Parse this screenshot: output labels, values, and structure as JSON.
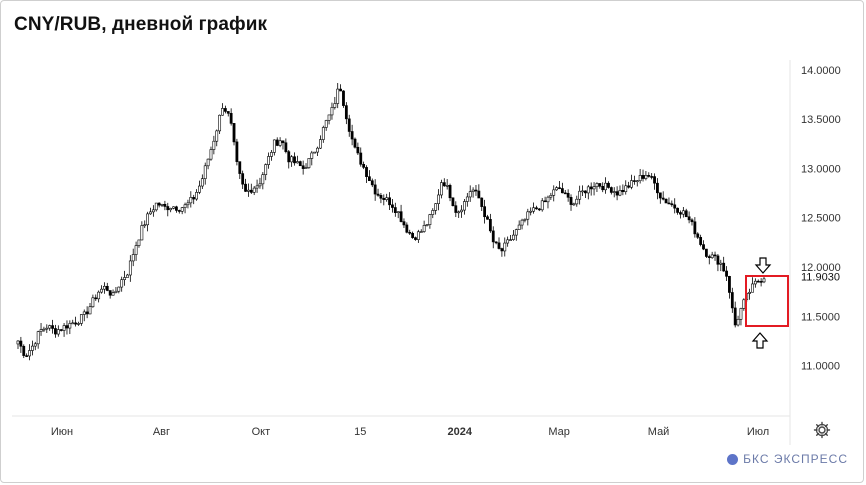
{
  "chart_data": {
    "type": "candlestick",
    "title": "CNY/RUB, дневной график",
    "y_tick_labels": [
      "14.0000",
      "13.5000",
      "13.0000",
      "12.5000",
      "12.0000",
      "11.5000",
      "11.0000"
    ],
    "y_ticks": [
      14.0,
      13.5,
      13.0,
      12.5,
      12.0,
      11.5,
      11.0
    ],
    "current_price_label": "11.9030",
    "current_price": 11.903,
    "ylim": [
      10.6,
      14.1
    ],
    "x_tick_labels": [
      "Июн",
      "Авг",
      "Окт",
      "15",
      "2024",
      "Мар",
      "Май",
      "Июл"
    ],
    "x_tick_bold": [
      false,
      false,
      false,
      false,
      true,
      false,
      false,
      false
    ],
    "close_series": [
      11.25,
      11.1,
      11.2,
      11.35,
      11.4,
      11.35,
      11.38,
      11.42,
      11.45,
      11.5,
      11.62,
      11.75,
      11.8,
      11.7,
      11.85,
      11.95,
      12.2,
      12.4,
      12.55,
      12.65,
      12.6,
      12.62,
      12.6,
      12.62,
      12.7,
      12.85,
      13.1,
      13.35,
      13.65,
      13.5,
      13.0,
      12.75,
      12.8,
      12.85,
      13.05,
      13.25,
      13.3,
      13.1,
      13.05,
      13.0,
      13.1,
      13.25,
      13.45,
      13.6,
      13.85,
      13.5,
      13.2,
      13.05,
      12.9,
      12.75,
      12.7,
      12.65,
      12.55,
      12.4,
      12.3,
      12.35,
      12.45,
      12.6,
      12.9,
      12.75,
      12.55,
      12.65,
      12.8,
      12.7,
      12.5,
      12.25,
      12.15,
      12.25,
      12.35,
      12.45,
      12.55,
      12.6,
      12.65,
      12.75,
      12.8,
      12.7,
      12.65,
      12.75,
      12.8,
      12.85,
      12.82,
      12.8,
      12.75,
      12.8,
      12.85,
      12.9,
      12.95,
      12.85,
      12.7,
      12.65,
      12.6,
      12.55,
      12.45,
      12.3,
      12.15,
      12.1,
      12.05,
      11.9,
      11.4,
      11.6,
      11.75,
      11.85,
      11.903
    ],
    "annotations": [
      "highlight-box",
      "arrow-down",
      "arrow-up"
    ],
    "grid": false,
    "colors": {
      "candle": "#000000",
      "highlight": "#e31b23",
      "axis_text": "#333333"
    }
  },
  "brand": {
    "text": "БКС ЭКСПРЕСС"
  },
  "settings_icon": "gear-icon"
}
